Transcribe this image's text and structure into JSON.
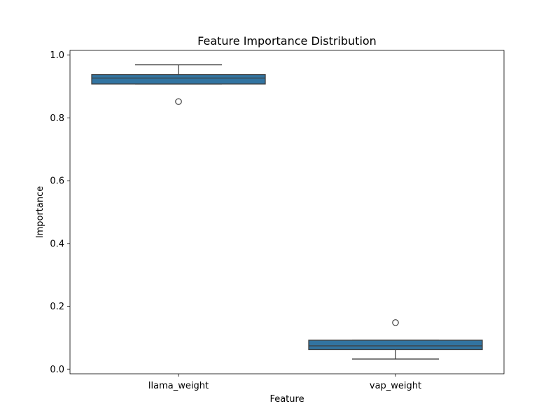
{
  "chart_data": {
    "type": "box",
    "title": "Feature Importance Distribution",
    "xlabel": "Feature",
    "ylabel": "Importance",
    "categories": [
      "llama_weight",
      "vap_weight"
    ],
    "ylim": [
      -0.015,
      1.015
    ],
    "yticks": [
      0.0,
      0.2,
      0.4,
      0.6,
      0.8,
      1.0
    ],
    "ytick_labels": [
      "0.0",
      "0.2",
      "0.4",
      "0.6",
      "0.8",
      "1.0"
    ],
    "grid": false,
    "box_color": "#3274a1",
    "line_color": "#3f3f3f",
    "boxes": [
      {
        "category": "llama_weight",
        "whisker_low": 0.908,
        "q1": 0.908,
        "median": 0.927,
        "q3": 0.938,
        "whisker_high": 0.969,
        "outliers": [
          0.852
        ]
      },
      {
        "category": "vap_weight",
        "whisker_low": 0.032,
        "q1": 0.062,
        "median": 0.074,
        "q3": 0.092,
        "whisker_high": 0.092,
        "outliers": [
          0.148
        ]
      }
    ]
  }
}
